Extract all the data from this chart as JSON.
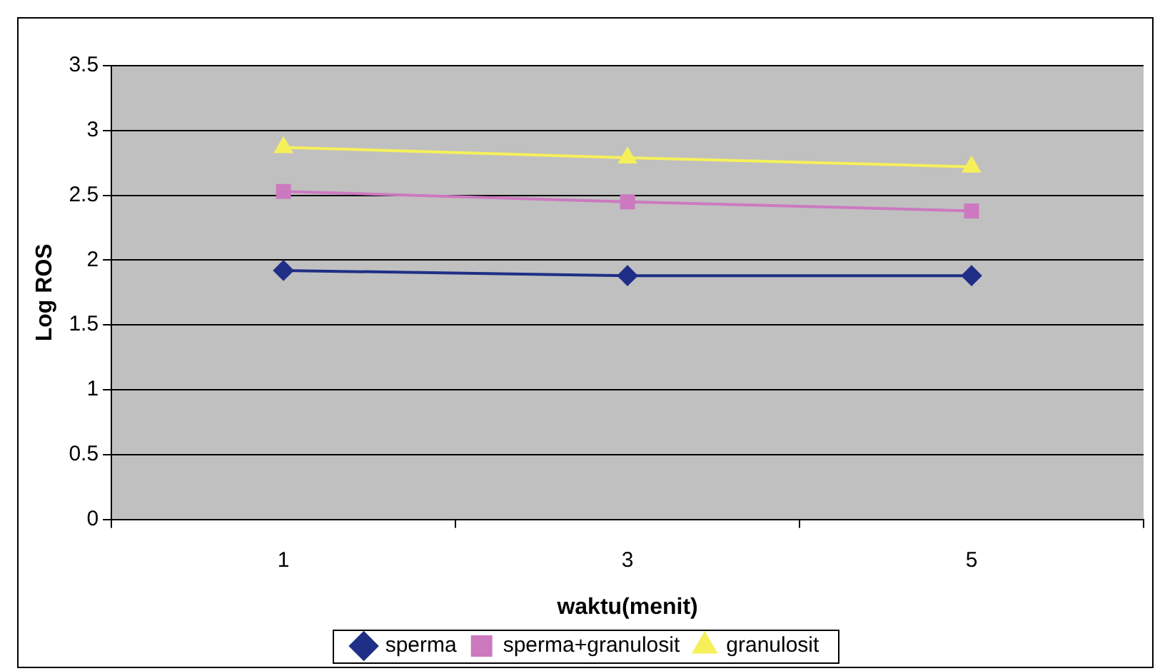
{
  "chart_data": {
    "type": "line",
    "xlabel": "waktu(menit)",
    "ylabel": "Log ROS",
    "categories": [
      "1",
      "3",
      "5"
    ],
    "series": [
      {
        "name": "sperma",
        "color": "#1f2f86",
        "values": [
          1.92,
          1.88,
          1.88
        ],
        "marker": "diamond"
      },
      {
        "name": "sperma+granulosit",
        "color": "#cc79c0",
        "values": [
          2.53,
          2.45,
          2.38
        ],
        "marker": "square"
      },
      {
        "name": "granulosit",
        "color": "#f5f05a",
        "values": [
          2.87,
          2.79,
          2.72
        ],
        "marker": "triangle"
      }
    ],
    "ylim": [
      0,
      3.5
    ],
    "yticks": [
      0,
      0.5,
      1,
      1.5,
      2,
      2.5,
      3,
      3.5
    ],
    "grid": "y",
    "legend": "bottom"
  }
}
